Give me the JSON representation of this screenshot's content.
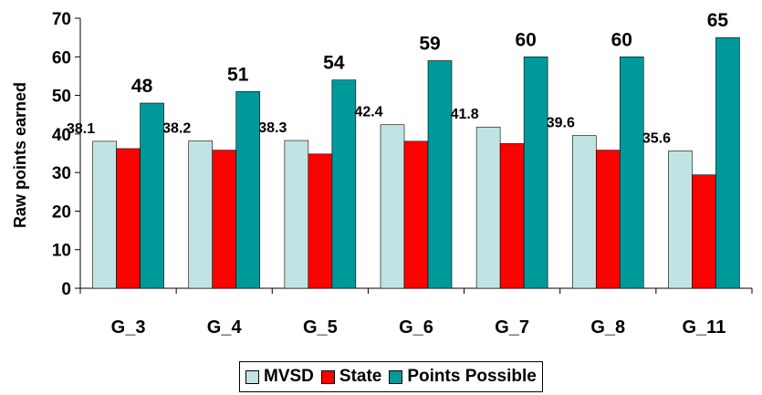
{
  "chart_data": {
    "type": "bar",
    "title": "",
    "xlabel": "",
    "ylabel": "Raw points earned",
    "ylim": [
      0,
      70
    ],
    "yticks": [
      0,
      10,
      20,
      30,
      40,
      50,
      60,
      70
    ],
    "grid": false,
    "legend_position": "bottom",
    "categories": [
      "G_3",
      "G_4",
      "G_5",
      "G_6",
      "G_7",
      "G_8",
      "G_11"
    ],
    "series": [
      {
        "name": "MVSD",
        "color": "#c0e4e4",
        "values": [
          38.1,
          38.2,
          38.3,
          42.4,
          41.8,
          39.6,
          35.6
        ],
        "labels": [
          "38.1",
          "38.2",
          "38.3",
          "42.4",
          "41.8",
          "39.6",
          "35.6"
        ]
      },
      {
        "name": "State",
        "color": "#ff0000",
        "values": [
          36.2,
          35.8,
          34.8,
          38.1,
          37.5,
          35.8,
          29.4
        ]
      },
      {
        "name": "Points Possible",
        "color": "#009999",
        "values": [
          48,
          51,
          54,
          59,
          60,
          60,
          65
        ],
        "labels": [
          "48",
          "51",
          "54",
          "59",
          "60",
          "60",
          "65"
        ]
      }
    ]
  }
}
